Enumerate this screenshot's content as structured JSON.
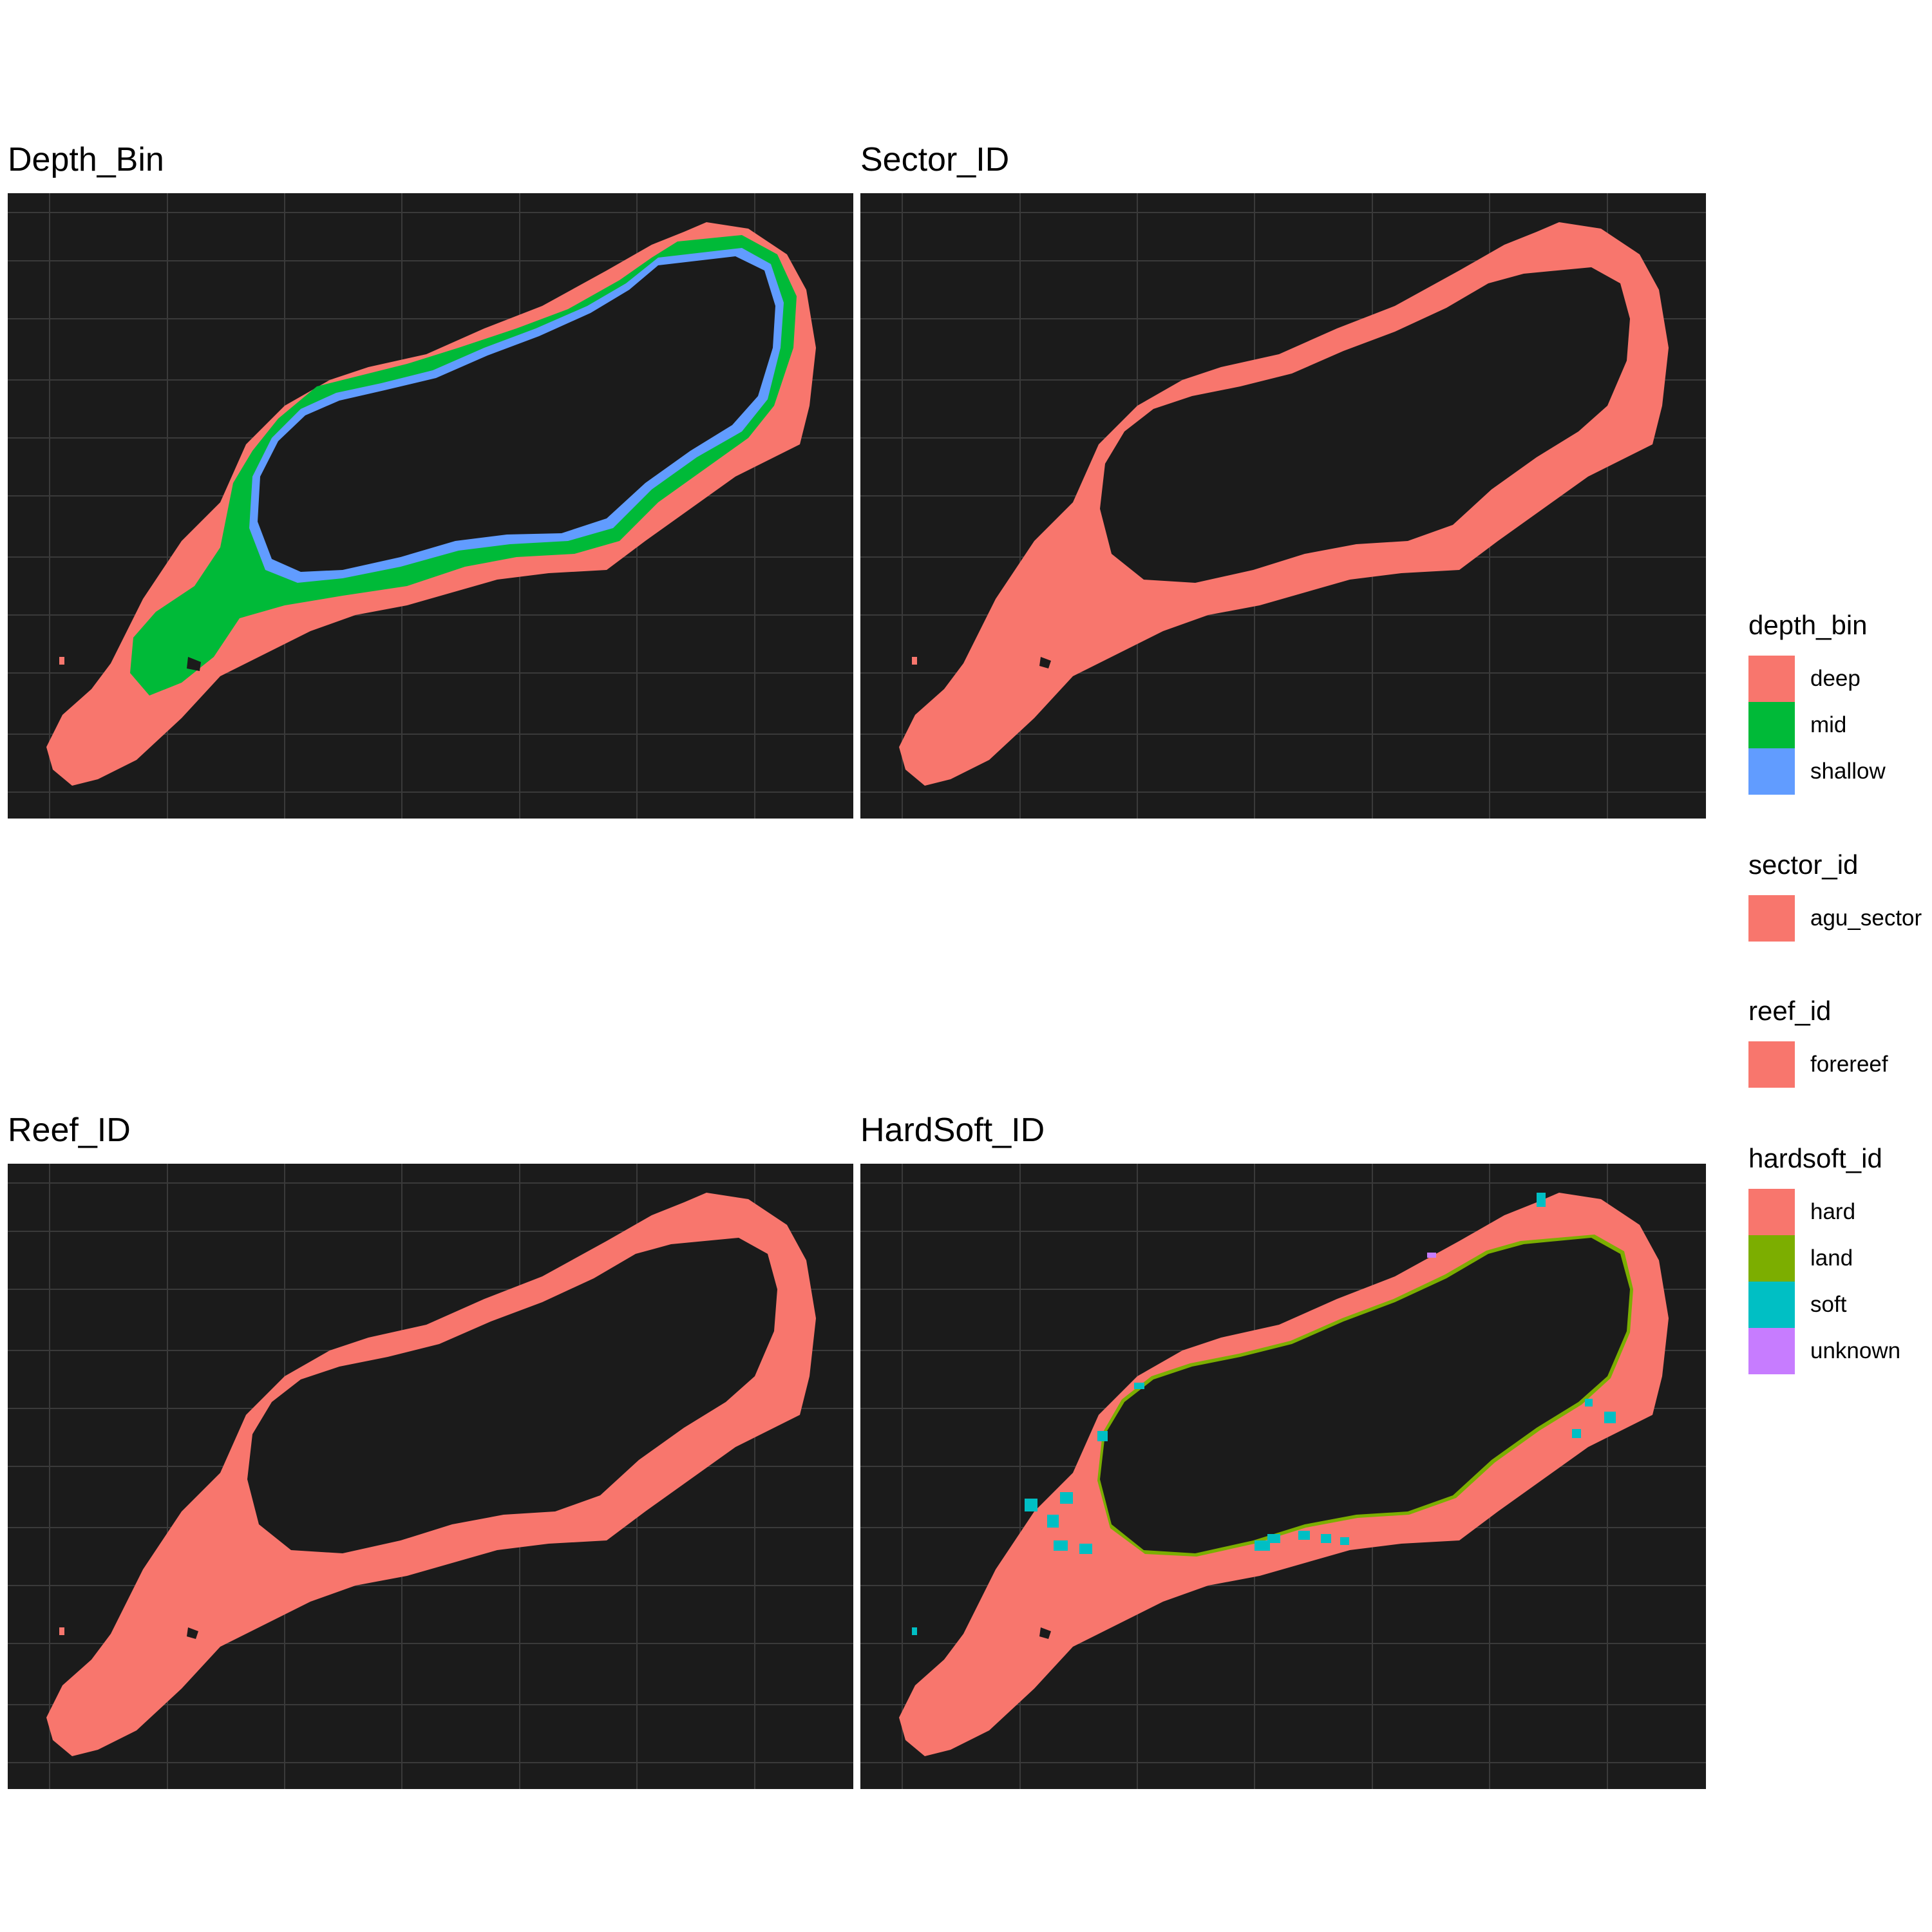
{
  "panels": [
    {
      "title": "Depth_Bin"
    },
    {
      "title": "Sector_ID"
    },
    {
      "title": "Reef_ID"
    },
    {
      "title": "HardSoft_ID"
    }
  ],
  "legends": [
    {
      "title": "depth_bin",
      "items": [
        {
          "label": "deep",
          "color": "#F8766D"
        },
        {
          "label": "mid",
          "color": "#00BA38"
        },
        {
          "label": "shallow",
          "color": "#619CFF"
        }
      ]
    },
    {
      "title": "sector_id",
      "items": [
        {
          "label": "agu_sector",
          "color": "#F8766D"
        }
      ]
    },
    {
      "title": "reef_id",
      "items": [
        {
          "label": "forereef",
          "color": "#F8766D"
        }
      ]
    },
    {
      "title": "hardsoft_id",
      "items": [
        {
          "label": "hard",
          "color": "#F8766D"
        },
        {
          "label": "land",
          "color": "#7CAE00"
        },
        {
          "label": "soft",
          "color": "#00BFC4"
        },
        {
          "label": "unknown",
          "color": "#C77CFF"
        }
      ]
    }
  ],
  "colors": {
    "panel_background": "#1b1b1b",
    "grid": "#3a3a3a",
    "lagoon": "#1b1b1b"
  }
}
